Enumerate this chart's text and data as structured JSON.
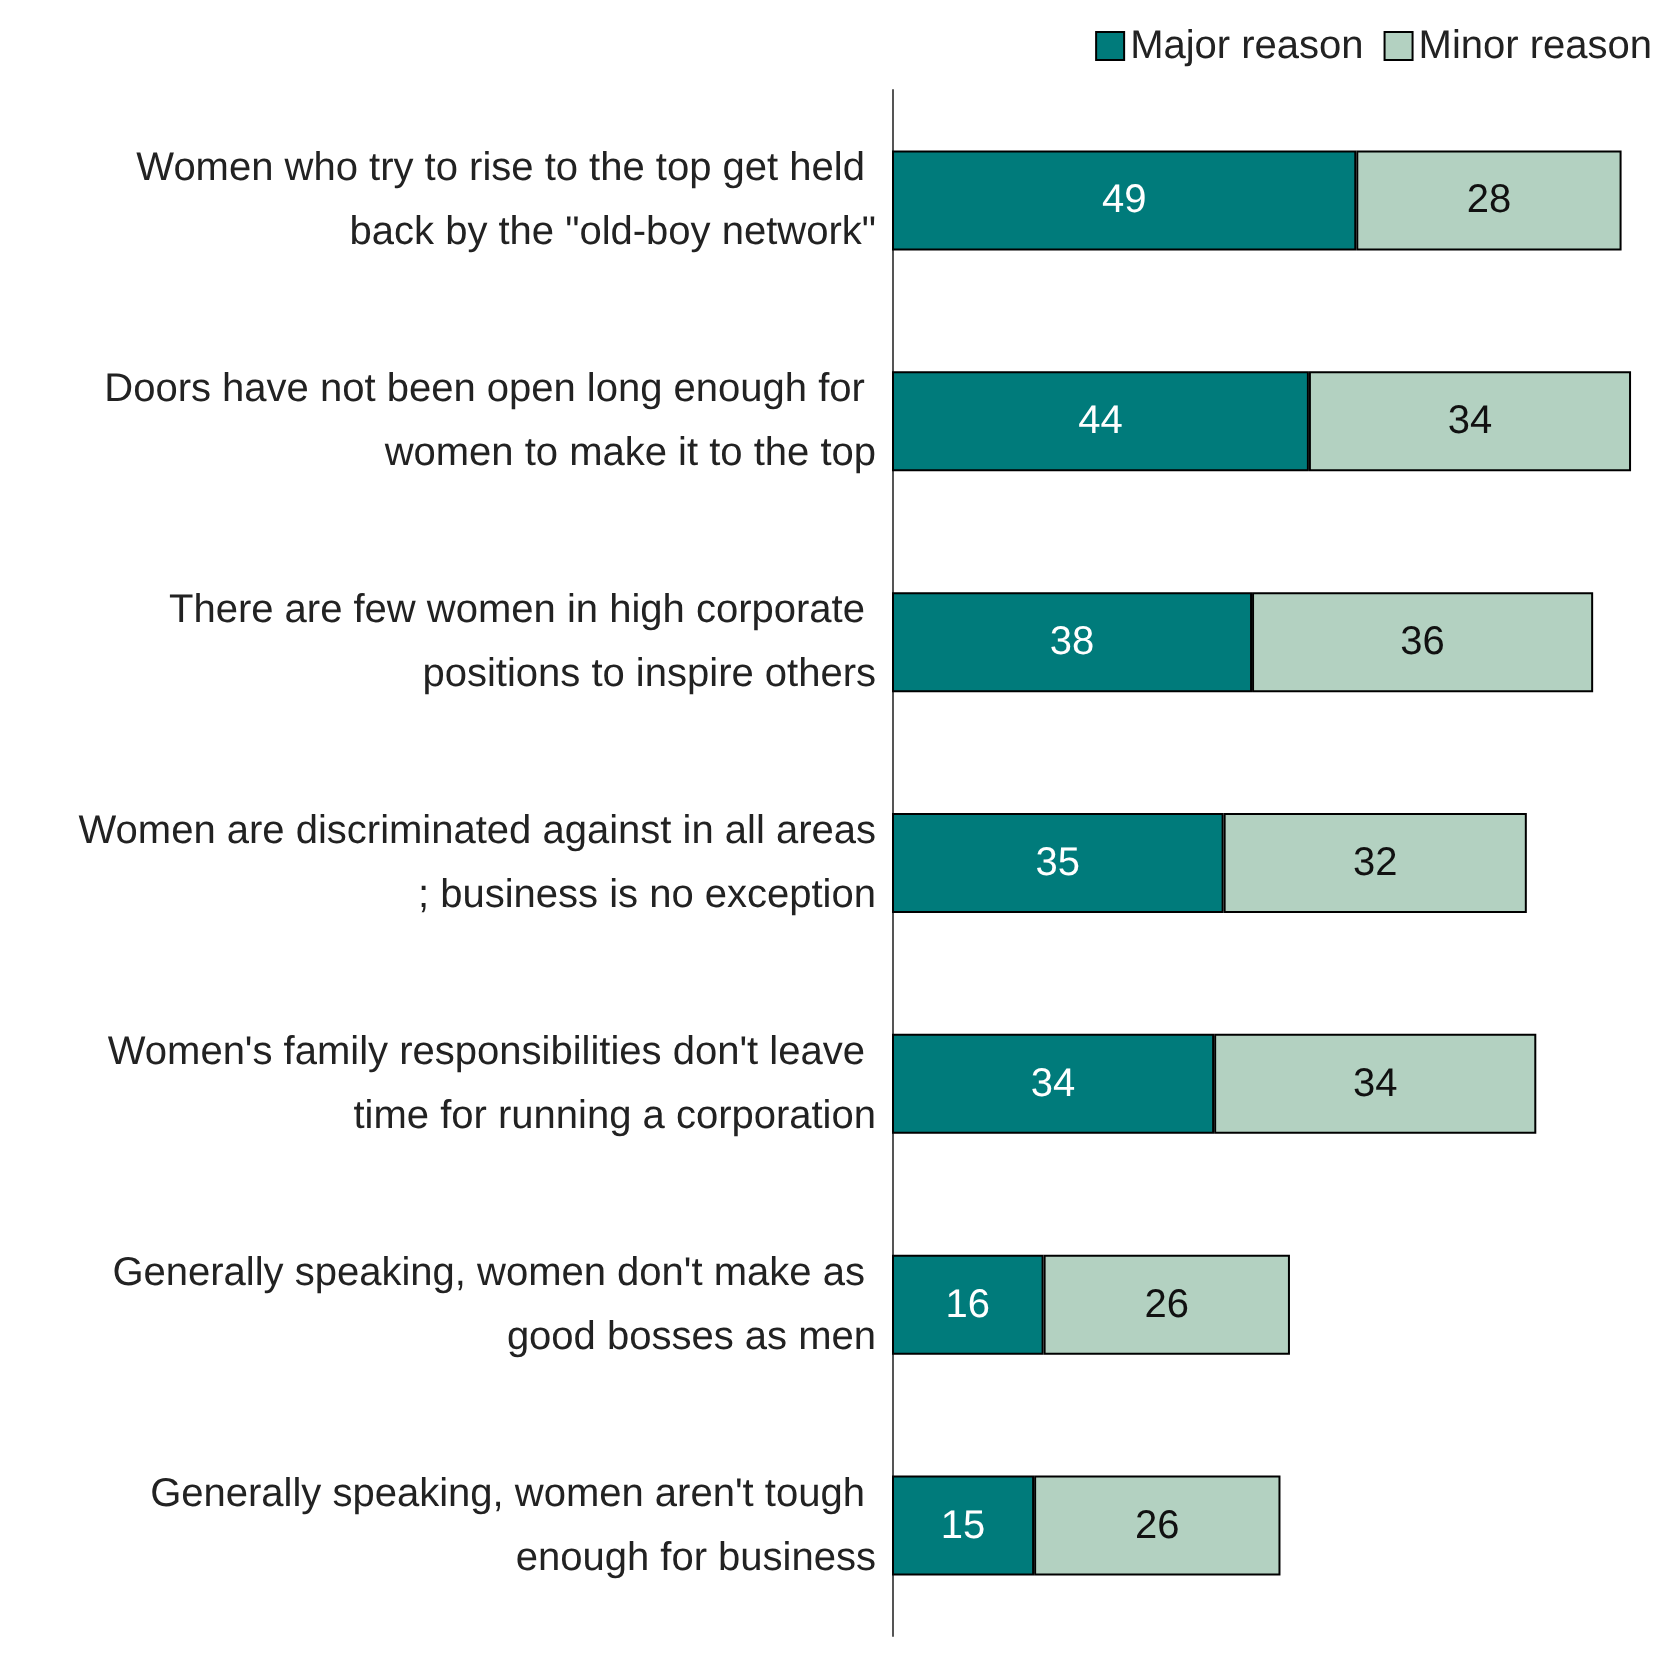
{
  "chart_data": {
    "type": "bar",
    "orientation": "horizontal",
    "stacked": true,
    "data_labels": true,
    "legend": "top right",
    "categories": [
      "Women who try to rise to the top get held back by the \"old-boy network\"",
      "Doors have not been open long enough for women to make it to the top",
      "There are few women in high corporate positions to inspire others",
      "Women are discriminated against in all areas; business is no exception",
      "Women's family responsibilities don't leave time for running a corporation",
      "Generally speaking, women don't make as good bosses as men",
      "Generally speaking, women aren't tough enough for business"
    ],
    "series": [
      {
        "name": "Major reason",
        "color": "#007b7b",
        "values": [
          49,
          44,
          38,
          35,
          34,
          16,
          15
        ]
      },
      {
        "name": "Minor reason",
        "color": "#b3d1c1",
        "values": [
          28,
          34,
          36,
          32,
          34,
          26,
          26
        ]
      }
    ]
  }
}
